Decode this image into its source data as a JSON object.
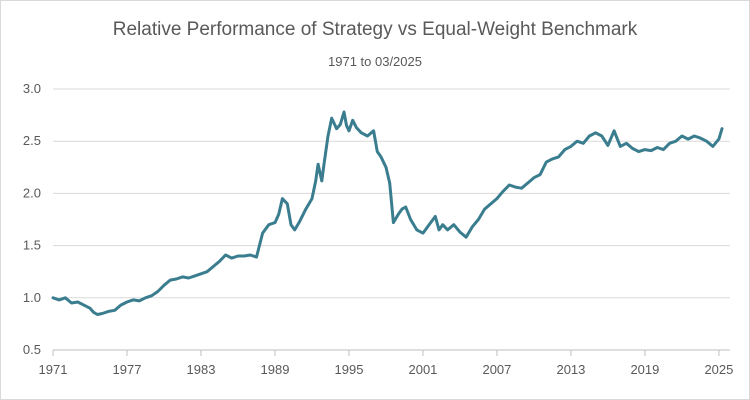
{
  "chart_data": {
    "type": "line",
    "title": "Relative Performance of Strategy vs Equal-Weight Benchmark",
    "subtitle": "1971 to 03/2025",
    "xlabel": "",
    "ylabel": "",
    "xlim": [
      1971,
      2025.25
    ],
    "ylim": [
      0.5,
      3.0
    ],
    "x_ticks": [
      "1971",
      "1977",
      "1983",
      "1989",
      "1995",
      "2001",
      "2007",
      "2013",
      "2019",
      "2025"
    ],
    "y_ticks": [
      "0.5",
      "1.0",
      "1.5",
      "2.0",
      "2.5",
      "3.0"
    ],
    "grid": "horizontal",
    "legend": "none",
    "colors": {
      "line": "#3a7d8f",
      "grid": "#d9d9d9",
      "axis": "#bfbfbf",
      "text": "#595959"
    },
    "series": [
      {
        "x": [
          1971.0,
          1971.5,
          1972.0,
          1972.5,
          1973.0,
          1973.5,
          1974.0,
          1974.3,
          1974.6,
          1975.0,
          1975.5,
          1976.0,
          1976.5,
          1977.0,
          1977.5,
          1978.0,
          1978.5,
          1979.0,
          1979.5,
          1980.0,
          1980.5,
          1981.0,
          1981.5,
          1982.0,
          1982.5,
          1983.0,
          1983.5,
          1984.0,
          1984.5,
          1985.0,
          1985.5,
          1986.0,
          1986.5,
          1987.0,
          1987.5,
          1988.0,
          1988.5,
          1989.0,
          1989.3,
          1989.6,
          1990.0,
          1990.3,
          1990.6,
          1991.0,
          1991.5,
          1992.0,
          1992.3,
          1992.5,
          1992.8,
          1993.0,
          1993.3,
          1993.6,
          1994.0,
          1994.3,
          1994.6,
          1994.8,
          1995.0,
          1995.3,
          1995.6,
          1996.0,
          1996.5,
          1997.0,
          1997.3,
          1997.6,
          1998.0,
          1998.3,
          1998.6,
          1999.0,
          1999.3,
          1999.6,
          2000.0,
          2000.5,
          2001.0,
          2001.5,
          2002.0,
          2002.3,
          2002.6,
          2003.0,
          2003.5,
          2004.0,
          2004.5,
          2005.0,
          2005.5,
          2006.0,
          2006.5,
          2007.0,
          2007.5,
          2008.0,
          2008.5,
          2009.0,
          2009.5,
          2010.0,
          2010.5,
          2011.0,
          2011.5,
          2012.0,
          2012.5,
          2013.0,
          2013.5,
          2014.0,
          2014.5,
          2015.0,
          2015.5,
          2016.0,
          2016.5,
          2017.0,
          2017.5,
          2018.0,
          2018.5,
          2019.0,
          2019.5,
          2020.0,
          2020.5,
          2021.0,
          2021.5,
          2022.0,
          2022.5,
          2023.0,
          2023.5,
          2024.0,
          2024.5,
          2025.0,
          2025.25
        ],
        "values": [
          1.0,
          0.98,
          1.0,
          0.95,
          0.96,
          0.93,
          0.9,
          0.86,
          0.84,
          0.85,
          0.87,
          0.88,
          0.93,
          0.96,
          0.98,
          0.97,
          1.0,
          1.02,
          1.06,
          1.12,
          1.17,
          1.18,
          1.2,
          1.19,
          1.21,
          1.23,
          1.25,
          1.3,
          1.35,
          1.41,
          1.38,
          1.4,
          1.4,
          1.41,
          1.39,
          1.62,
          1.7,
          1.72,
          1.8,
          1.95,
          1.9,
          1.7,
          1.65,
          1.73,
          1.85,
          1.95,
          2.12,
          2.28,
          2.12,
          2.3,
          2.55,
          2.72,
          2.62,
          2.66,
          2.78,
          2.65,
          2.6,
          2.7,
          2.63,
          2.58,
          2.55,
          2.6,
          2.4,
          2.35,
          2.25,
          2.1,
          1.72,
          1.8,
          1.85,
          1.87,
          1.75,
          1.65,
          1.62,
          1.7,
          1.78,
          1.65,
          1.7,
          1.65,
          1.7,
          1.63,
          1.58,
          1.68,
          1.75,
          1.85,
          1.9,
          1.95,
          2.02,
          2.08,
          2.06,
          2.05,
          2.1,
          2.15,
          2.18,
          2.3,
          2.33,
          2.35,
          2.42,
          2.45,
          2.5,
          2.48,
          2.55,
          2.58,
          2.55,
          2.46,
          2.6,
          2.45,
          2.48,
          2.43,
          2.4,
          2.42,
          2.41,
          2.44,
          2.42,
          2.48,
          2.5,
          2.55,
          2.52,
          2.55,
          2.53,
          2.5,
          2.45,
          2.52,
          2.62
        ]
      }
    ]
  }
}
